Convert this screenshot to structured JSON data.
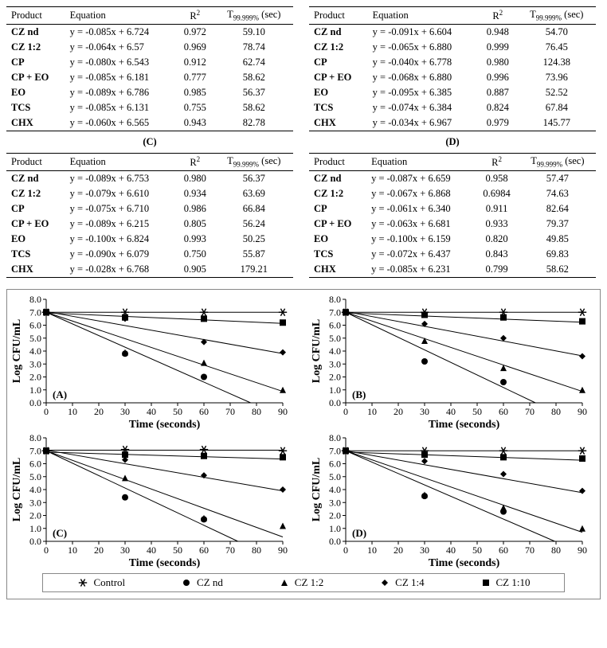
{
  "tables": {
    "headers": {
      "product": "Product",
      "equation": "Equation",
      "r2_html": "R<span class='sup'>2</span>",
      "t99_html": "T<span class='sub'>99.999%</span> (sec)"
    },
    "panelLabels": {
      "A": "(A)",
      "B": "(B)",
      "C": "(C)",
      "D": "(D)"
    },
    "A": {
      "rows": [
        {
          "product": "CZ nd",
          "equation": "y = -0.085x + 6.724",
          "r2": "0.972",
          "t": "59.10"
        },
        {
          "product": "CZ 1:2",
          "equation": "y = -0.064x + 6.57",
          "r2": "0.969",
          "t": "78.74"
        },
        {
          "product": "CP",
          "equation": "y = -0.080x + 6.543",
          "r2": "0.912",
          "t": "62.74"
        },
        {
          "product": "CP + EO",
          "equation": "y = -0.085x + 6.181",
          "r2": "0.777",
          "t": "58.62"
        },
        {
          "product": "EO",
          "equation": "y = -0.089x + 6.786",
          "r2": "0.985",
          "t": "56.37"
        },
        {
          "product": "TCS",
          "equation": "y = -0.085x + 6.131",
          "r2": "0.755",
          "t": "58.62"
        },
        {
          "product": "CHX",
          "equation": "y = -0.060x + 6.565",
          "r2": "0.943",
          "t": "82.78"
        }
      ]
    },
    "B": {
      "rows": [
        {
          "product": "CZ nd",
          "equation": "y = -0.091x + 6.604",
          "r2": "0.948",
          "t": "54.70"
        },
        {
          "product": "CZ 1:2",
          "equation": "y = -0.065x + 6.880",
          "r2": "0.999",
          "t": "76.45"
        },
        {
          "product": "CP",
          "equation": "y = -0.040x + 6.778",
          "r2": "0.980",
          "t": "124.38"
        },
        {
          "product": "CP + EO",
          "equation": "y = -0.068x + 6.880",
          "r2": "0.996",
          "t": "73.96"
        },
        {
          "product": "EO",
          "equation": "y = -0.095x + 6.385",
          "r2": "0.887",
          "t": "52.52"
        },
        {
          "product": "TCS",
          "equation": "y = -0.074x + 6.384",
          "r2": "0.824",
          "t": "67.84"
        },
        {
          "product": "CHX",
          "equation": "y = -0.034x + 6.967",
          "r2": "0.979",
          "t": "145.77"
        }
      ]
    },
    "C": {
      "rows": [
        {
          "product": "CZ nd",
          "equation": "y = -0.089x + 6.753",
          "r2": "0.980",
          "t": "56.37"
        },
        {
          "product": "CZ 1:2",
          "equation": "y = -0.079x + 6.610",
          "r2": "0.934",
          "t": "63.69"
        },
        {
          "product": "CP",
          "equation": "y = -0.075x + 6.710",
          "r2": "0.986",
          "t": "66.84"
        },
        {
          "product": "CP + EO",
          "equation": "y = -0.089x + 6.215",
          "r2": "0.805",
          "t": "56.24"
        },
        {
          "product": "EO",
          "equation": "y = -0.100x + 6.824",
          "r2": "0.993",
          "t": "50.25"
        },
        {
          "product": "TCS",
          "equation": "y = -0.090x + 6.079",
          "r2": "0.750",
          "t": "55.87"
        },
        {
          "product": "CHX",
          "equation": "y = -0.028x + 6.768",
          "r2": "0.905",
          "t": "179.21"
        }
      ]
    },
    "D": {
      "rows": [
        {
          "product": "CZ nd",
          "equation": "y = -0.087x + 6.659",
          "r2": "0.958",
          "t": "57.47"
        },
        {
          "product": "CZ 1:2",
          "equation": "y = -0.067x + 6.868",
          "r2": "0.6984",
          "t": "74.63"
        },
        {
          "product": "CP",
          "equation": "y = -0.061x + 6.340",
          "r2": "0.911",
          "t": "82.64"
        },
        {
          "product": "CP + EO",
          "equation": "y = -0.063x + 6.681",
          "r2": "0.933",
          "t": "79.37"
        },
        {
          "product": "EO",
          "equation": "y = -0.100x + 6.159",
          "r2": "0.820",
          "t": "49.85"
        },
        {
          "product": "TCS",
          "equation": "y = -0.072x + 6.437",
          "r2": "0.843",
          "t": "69.83"
        },
        {
          "product": "CHX",
          "equation": "y = -0.085x + 6.231",
          "r2": "0.799",
          "t": "58.62"
        }
      ]
    }
  },
  "charts": {
    "xlabel": "Time (seconds)",
    "ylabel": "Log CFU/mL",
    "xlim": [
      0,
      90
    ],
    "ylim": [
      0.0,
      8.0
    ],
    "xticks": [
      0,
      10,
      20,
      30,
      40,
      50,
      60,
      70,
      80,
      90
    ],
    "yticks": [
      0.0,
      1.0,
      2.0,
      3.0,
      4.0,
      5.0,
      6.0,
      7.0,
      8.0
    ],
    "font": {
      "axis_label_size": 14,
      "tick_size": 12,
      "panel_label_size": 13,
      "weight": "bold"
    },
    "colors": {
      "axis": "#000000",
      "line": "#000000",
      "marker_fill": "#000000",
      "background": "#ffffff"
    },
    "legend": {
      "items": [
        {
          "marker": "asterisk",
          "label": "Control"
        },
        {
          "marker": "circle",
          "label": "CZ nd"
        },
        {
          "marker": "triangle",
          "label": "CZ  1:2"
        },
        {
          "marker": "diamond",
          "label": "CZ  1:4"
        },
        {
          "marker": "square",
          "label": "CZ  1:10"
        }
      ]
    },
    "panels": {
      "A": {
        "label": "(A)",
        "series": {
          "control": {
            "marker": "asterisk",
            "points": [
              [
                0,
                7.0
              ],
              [
                30,
                7.0
              ],
              [
                60,
                7.0
              ],
              [
                90,
                7.0
              ]
            ],
            "line": {
              "m": 0.0,
              "b": 7.0
            }
          },
          "cz_nd": {
            "marker": "circle",
            "points": [
              [
                0,
                7.0
              ],
              [
                30,
                3.8
              ],
              [
                60,
                2.0
              ]
            ],
            "line": {
              "m": -0.09,
              "b": 7.0
            }
          },
          "cz_12": {
            "marker": "triangle",
            "points": [
              [
                0,
                7.0
              ],
              [
                30,
                3.9
              ],
              [
                60,
                3.1
              ],
              [
                90,
                1.0
              ]
            ],
            "line": {
              "m": -0.068,
              "b": 7.0
            }
          },
          "cz_14": {
            "marker": "diamond",
            "points": [
              [
                0,
                7.0
              ],
              [
                30,
                6.5
              ],
              [
                60,
                4.7
              ],
              [
                90,
                3.9
              ]
            ],
            "line": {
              "m": -0.036,
              "b": 7.05
            }
          },
          "cz_110": {
            "marker": "square",
            "points": [
              [
                0,
                7.0
              ],
              [
                30,
                6.6
              ],
              [
                60,
                6.5
              ],
              [
                90,
                6.2
              ]
            ],
            "line": {
              "m": -0.009,
              "b": 6.95
            }
          }
        }
      },
      "B": {
        "label": "(B)",
        "series": {
          "control": {
            "marker": "asterisk",
            "points": [
              [
                0,
                7.0
              ],
              [
                30,
                7.0
              ],
              [
                60,
                7.0
              ],
              [
                90,
                7.0
              ]
            ],
            "line": {
              "m": 0.0,
              "b": 7.0
            }
          },
          "cz_nd": {
            "marker": "circle",
            "points": [
              [
                0,
                7.0
              ],
              [
                30,
                3.2
              ],
              [
                60,
                1.6
              ]
            ],
            "line": {
              "m": -0.097,
              "b": 7.0
            }
          },
          "cz_12": {
            "marker": "triangle",
            "points": [
              [
                0,
                7.0
              ],
              [
                30,
                4.8
              ],
              [
                60,
                2.7
              ],
              [
                90,
                1.0
              ]
            ],
            "line": {
              "m": -0.068,
              "b": 7.0
            }
          },
          "cz_14": {
            "marker": "diamond",
            "points": [
              [
                0,
                7.0
              ],
              [
                30,
                6.1
              ],
              [
                60,
                5.0
              ],
              [
                90,
                3.6
              ]
            ],
            "line": {
              "m": -0.038,
              "b": 7.05
            }
          },
          "cz_110": {
            "marker": "square",
            "points": [
              [
                0,
                7.0
              ],
              [
                30,
                6.8
              ],
              [
                60,
                6.6
              ],
              [
                90,
                6.3
              ]
            ],
            "line": {
              "m": -0.008,
              "b": 6.95
            }
          }
        }
      },
      "C": {
        "label": "(C)",
        "series": {
          "control": {
            "marker": "asterisk",
            "points": [
              [
                0,
                7.0
              ],
              [
                30,
                7.1
              ],
              [
                60,
                7.1
              ],
              [
                90,
                7.0
              ]
            ],
            "line": {
              "m": 0.0,
              "b": 7.05
            }
          },
          "cz_nd": {
            "marker": "circle",
            "points": [
              [
                0,
                7.0
              ],
              [
                30,
                3.4
              ],
              [
                60,
                1.7
              ]
            ],
            "line": {
              "m": -0.096,
              "b": 7.0
            }
          },
          "cz_12": {
            "marker": "triangle",
            "points": [
              [
                0,
                7.0
              ],
              [
                30,
                4.9
              ],
              [
                60,
                1.8
              ],
              [
                90,
                1.2
              ]
            ],
            "line": {
              "m": -0.074,
              "b": 7.0
            }
          },
          "cz_14": {
            "marker": "diamond",
            "points": [
              [
                0,
                7.0
              ],
              [
                30,
                6.3
              ],
              [
                60,
                5.1
              ],
              [
                90,
                4.0
              ]
            ],
            "line": {
              "m": -0.035,
              "b": 7.05
            }
          },
          "cz_110": {
            "marker": "square",
            "points": [
              [
                0,
                7.0
              ],
              [
                30,
                6.7
              ],
              [
                60,
                6.6
              ],
              [
                90,
                6.5
              ]
            ],
            "line": {
              "m": -0.006,
              "b": 6.9
            }
          }
        }
      },
      "D": {
        "label": "(D)",
        "series": {
          "control": {
            "marker": "asterisk",
            "points": [
              [
                0,
                7.0
              ],
              [
                30,
                7.0
              ],
              [
                60,
                7.0
              ],
              [
                90,
                7.0
              ]
            ],
            "line": {
              "m": 0.0,
              "b": 7.0
            }
          },
          "cz_nd": {
            "marker": "circle",
            "points": [
              [
                0,
                7.0
              ],
              [
                30,
                3.5
              ],
              [
                60,
                2.3
              ]
            ],
            "line": {
              "m": -0.088,
              "b": 7.0
            }
          },
          "cz_12": {
            "marker": "triangle",
            "points": [
              [
                0,
                7.0
              ],
              [
                30,
                3.6
              ],
              [
                60,
                2.6
              ],
              [
                90,
                1.0
              ]
            ],
            "line": {
              "m": -0.07,
              "b": 7.0
            }
          },
          "cz_14": {
            "marker": "diamond",
            "points": [
              [
                0,
                7.0
              ],
              [
                30,
                6.2
              ],
              [
                60,
                5.2
              ],
              [
                90,
                3.9
              ]
            ],
            "line": {
              "m": -0.036,
              "b": 7.0
            }
          },
          "cz_110": {
            "marker": "square",
            "points": [
              [
                0,
                7.0
              ],
              [
                30,
                6.7
              ],
              [
                60,
                6.5
              ],
              [
                90,
                6.4
              ]
            ],
            "line": {
              "m": -0.007,
              "b": 6.9
            }
          }
        }
      }
    }
  }
}
